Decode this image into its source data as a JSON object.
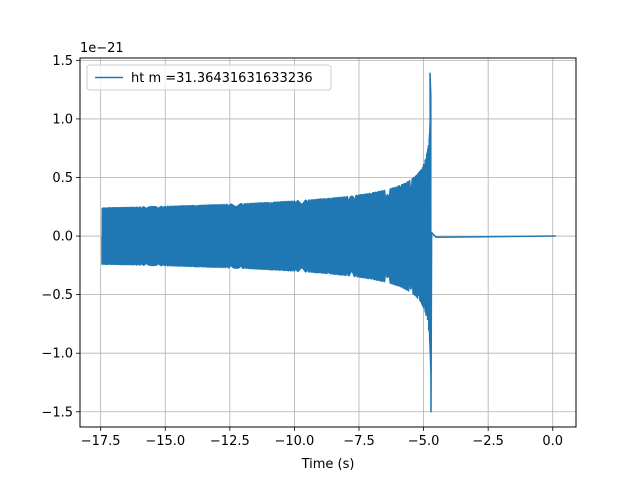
{
  "chart_data": {
    "type": "line",
    "title": "",
    "xlabel": "Time (s)",
    "ylabel": "",
    "y_offset_label": "1e−21",
    "xlim": [
      -18.3,
      0.9
    ],
    "ylim": [
      -1.63,
      1.52
    ],
    "grid": true,
    "legend_position": "top-left",
    "x_ticks": [
      -17.5,
      -15.0,
      -12.5,
      -10.0,
      -7.5,
      -5.0,
      -2.5,
      0.0
    ],
    "x_tick_labels": [
      "−17.5",
      "−15.0",
      "−12.5",
      "−10.0",
      "−7.5",
      "−5.0",
      "−2.5",
      "0.0"
    ],
    "y_ticks": [
      -1.5,
      -1.0,
      -0.5,
      0.0,
      0.5,
      1.0,
      1.5
    ],
    "y_tick_labels": [
      "−1.5",
      "−1.0",
      "−0.5",
      "0.0",
      "0.5",
      "1.0",
      "1.5"
    ],
    "series": [
      {
        "name": "ht m =31.36431631633236",
        "color": "#1f77b4",
        "signal": {
          "kind": "chirp",
          "t_start": -17.45,
          "t_merger": -4.72,
          "t_end": 0.12,
          "amplitude_start": 0.24,
          "peak_positive": 1.39,
          "peak_negative": -1.5
        }
      }
    ]
  }
}
